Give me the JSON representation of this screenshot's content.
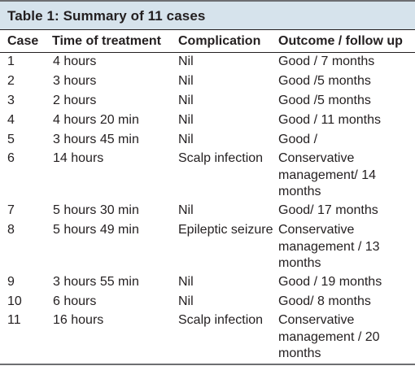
{
  "table": {
    "caption": "Table 1: Summary of 11 cases",
    "headers": {
      "case": "Case",
      "time": "Time of treatment",
      "complication": "Complication",
      "outcome": "Outcome / follow up"
    },
    "rows": [
      {
        "case": "1",
        "time": "4 hours",
        "complication": "Nil",
        "outcome": "Good / 7 months"
      },
      {
        "case": "2",
        "time": "3 hours",
        "complication": "Nil",
        "outcome": "Good /5 months"
      },
      {
        "case": "3",
        "time": "2 hours",
        "complication": "Nil",
        "outcome": "Good /5 months"
      },
      {
        "case": "4",
        "time": "4 hours 20 min",
        "complication": "Nil",
        "outcome": "Good / 11 months"
      },
      {
        "case": "5",
        "time": "3 hours 45 min",
        "complication": "Nil",
        "outcome": "Good /"
      },
      {
        "case": "6",
        "time": "14 hours",
        "complication": "Scalp infection",
        "outcome": "Conservative management/ 14 months"
      },
      {
        "case": "7",
        "time": "5 hours 30 min",
        "complication": "Nil",
        "outcome": "Good/ 17 months"
      },
      {
        "case": "8",
        "time": "5 hours 49 min",
        "complication": "Epileptic seizure",
        "outcome": "Conservative management / 13 months"
      },
      {
        "case": "9",
        "time": "3 hours 55 min",
        "complication": "Nil",
        "outcome": "Good / 19 months"
      },
      {
        "case": "10",
        "time": "6 hours",
        "complication": "Nil",
        "outcome": "Good/ 8 months"
      },
      {
        "case": "11",
        "time": "16 hours",
        "complication": "Scalp infection",
        "outcome": "Conservative management / 20 months"
      }
    ]
  },
  "colors": {
    "caption_background": "#d6e3ec",
    "text": "#231f20",
    "rule": "#6d6e71"
  }
}
